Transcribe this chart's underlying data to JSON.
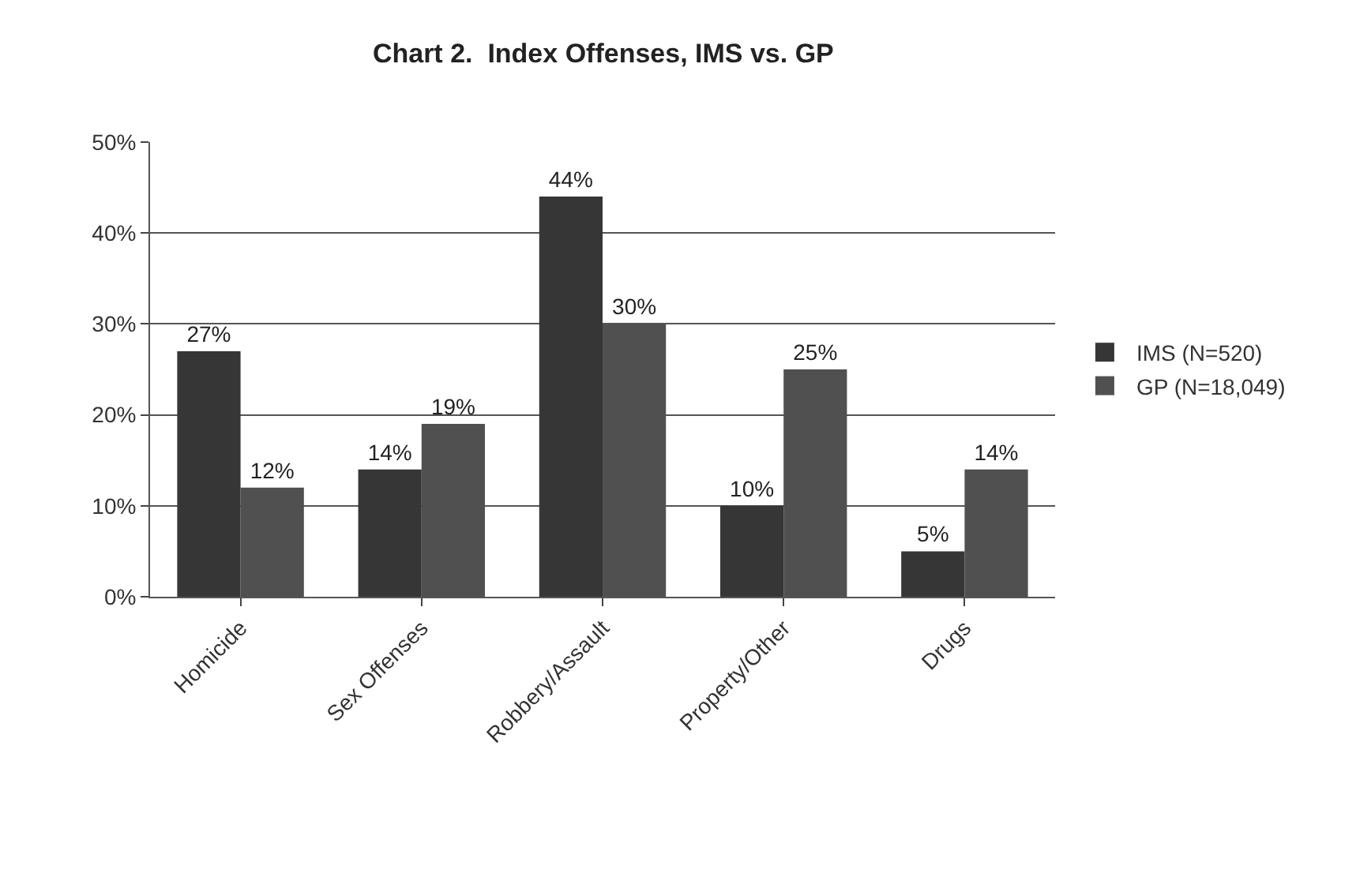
{
  "chart_data": {
    "type": "bar",
    "title": "Chart 2.  Index Offenses, IMS vs. GP",
    "categories": [
      "Homicide",
      "Sex Offenses",
      "Robbery/Assault",
      "Property/Other",
      "Drugs"
    ],
    "series": [
      {
        "name": "IMS (N=520)",
        "color": "#363636",
        "values": [
          27,
          14,
          44,
          10,
          5
        ],
        "value_labels": [
          "27%",
          "14%",
          "44%",
          "10%",
          "5%"
        ]
      },
      {
        "name": "GP (N=18,049)",
        "color": "#505050",
        "values": [
          12,
          19,
          30,
          25,
          14
        ],
        "value_labels": [
          "12%",
          "19%",
          "30%",
          "25%",
          "14%"
        ]
      }
    ],
    "ylim": [
      0,
      50
    ],
    "yticks": [
      {
        "value": 0,
        "label": "0%"
      },
      {
        "value": 10,
        "label": "10%"
      },
      {
        "value": 20,
        "label": "20%"
      },
      {
        "value": 30,
        "label": "30%"
      },
      {
        "value": 40,
        "label": "40%"
      },
      {
        "value": 50,
        "label": "50%"
      }
    ],
    "grid": "y",
    "legend": "right"
  }
}
